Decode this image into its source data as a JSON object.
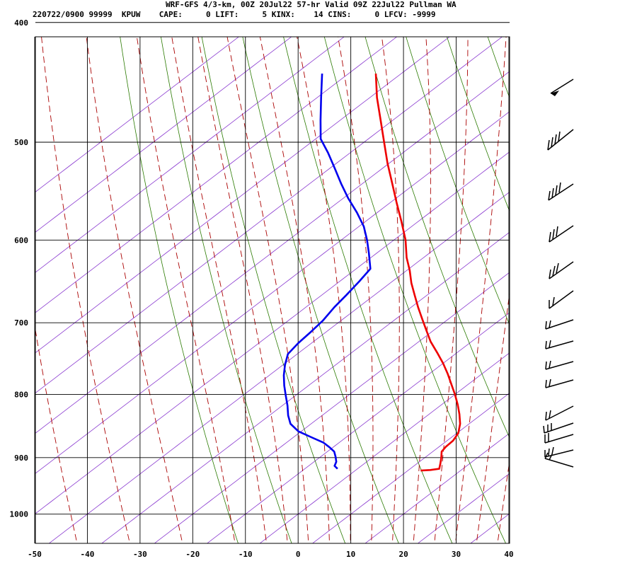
{
  "header": {
    "line1": "WRF-GFS 4/3-km, 00Z 20Jul22 57-hr Valid 09Z 22Jul22 Pullman WA",
    "line2": "220722/0900 99999  KPUW    CAPE:     0 LIFT:     5 KINX:    14 CINS:     0 LFCV: -9999"
  },
  "colors": {
    "temperature": "#ee0000",
    "dewpoint": "#0000ee",
    "dry_adiabat": "#2a7a00",
    "moist_adiabat": "#aa0000",
    "isotherm_skew": "#8a3ad0",
    "grid": "#000000"
  },
  "chart_data": {
    "type": "line",
    "subtype": "skew-t log-p sounding",
    "x_axis": {
      "label": "",
      "ticks": [
        -50,
        -40,
        -30,
        -20,
        -10,
        0,
        10,
        20,
        30,
        40
      ],
      "range": [
        -50,
        40
      ]
    },
    "y_axis": {
      "label": "",
      "scale": "log",
      "ticks": [
        400,
        500,
        600,
        700,
        800,
        900,
        1000
      ],
      "range": [
        400,
        1050
      ]
    },
    "grid": true,
    "series": [
      {
        "key": "temperature",
        "points": [
          [
            -20.1,
            440
          ],
          [
            -18,
            460
          ],
          [
            -15.5,
            480
          ],
          [
            -13.1,
            500
          ],
          [
            -10.8,
            520
          ],
          [
            -8.3,
            540
          ],
          [
            -5.9,
            560
          ],
          [
            -3.5,
            580
          ],
          [
            -1.3,
            600
          ],
          [
            0.3,
            620
          ],
          [
            1.9,
            635
          ],
          [
            3.2,
            650
          ],
          [
            4.8,
            665
          ],
          [
            6.4,
            680
          ],
          [
            8.1,
            695
          ],
          [
            9.8,
            710
          ],
          [
            11.5,
            725
          ],
          [
            13.6,
            740
          ],
          [
            15.6,
            755
          ],
          [
            17.3,
            770
          ],
          [
            18.8,
            785
          ],
          [
            20.3,
            800
          ],
          [
            21.6,
            815
          ],
          [
            22.7,
            830
          ],
          [
            23.6,
            845
          ],
          [
            24,
            860
          ],
          [
            23.6,
            872
          ],
          [
            22.7,
            882
          ],
          [
            22.3,
            890
          ],
          [
            22.7,
            900
          ],
          [
            23,
            910
          ],
          [
            23.2,
            919
          ],
          [
            21.6,
            921
          ],
          [
            19.8,
            922
          ]
        ]
      },
      {
        "key": "dewpoint",
        "points": [
          [
            -30.3,
            440
          ],
          [
            -28.6,
            460
          ],
          [
            -26.9,
            480
          ],
          [
            -25.4,
            497
          ],
          [
            -22.9,
            510
          ],
          [
            -20.4,
            525
          ],
          [
            -18,
            540
          ],
          [
            -15.5,
            555
          ],
          [
            -12.7,
            570
          ],
          [
            -10.3,
            585
          ],
          [
            -8.6,
            600
          ],
          [
            -7.2,
            615
          ],
          [
            -5.7,
            633
          ],
          [
            -6.8,
            648
          ],
          [
            -8.2,
            665
          ],
          [
            -9.5,
            680
          ],
          [
            -10.6,
            697
          ],
          [
            -12,
            712
          ],
          [
            -13.5,
            727
          ],
          [
            -14.6,
            742
          ],
          [
            -14.3,
            757
          ],
          [
            -13.7,
            772
          ],
          [
            -12.8,
            787
          ],
          [
            -11.7,
            802
          ],
          [
            -10.6,
            817
          ],
          [
            -9.7,
            832
          ],
          [
            -8.6,
            845
          ],
          [
            -6.5,
            857
          ],
          [
            -3.4,
            867
          ],
          [
            -0.9,
            875
          ],
          [
            0.7,
            883
          ],
          [
            1.9,
            890
          ],
          [
            2.6,
            899
          ],
          [
            3.1,
            907
          ],
          [
            3.1,
            914
          ],
          [
            3.9,
            919
          ]
        ]
      }
    ],
    "dry_adiabat_thetas_K": [
      260,
      270,
      280,
      290,
      300,
      310,
      320,
      330,
      340,
      350,
      360,
      370,
      380,
      390,
      400,
      410,
      420
    ],
    "moist_adiabat_surface_temps_C": [
      -40,
      -30,
      -20,
      -10,
      -4,
      0,
      4,
      8,
      12,
      16,
      20,
      24,
      28,
      32,
      36,
      40
    ],
    "skew_isotherms_C": [
      -130,
      -120,
      -110,
      -100,
      -90,
      -80,
      -70,
      -60,
      -50,
      -40,
      -30,
      -20,
      -10,
      0,
      10,
      20,
      30,
      40
    ],
    "wind_barbs_side": "right"
  }
}
